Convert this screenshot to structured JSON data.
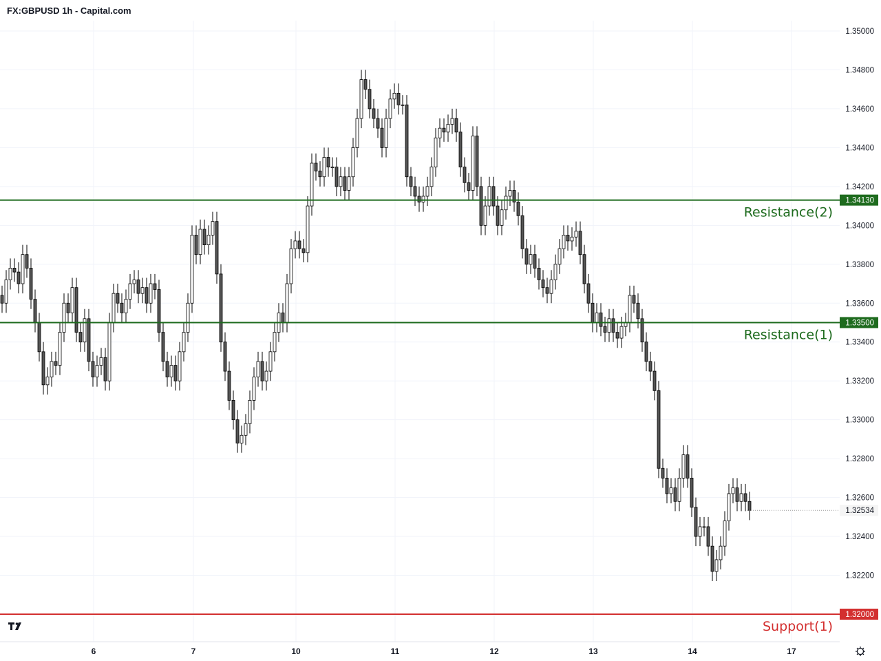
{
  "title": "FX:GBPUSD 1h - Capital.com",
  "chart_data": {
    "type": "candlestick",
    "title": "FX:GBPUSD 1h - Capital.com",
    "ylim": [
      1.3195,
      1.3508
    ],
    "y_ticks": [
      "1.35000",
      "1.34800",
      "1.34600",
      "1.34400",
      "1.34200",
      "1.34000",
      "1.33800",
      "1.33600",
      "1.33400",
      "1.33200",
      "1.33000",
      "1.32800",
      "1.32600",
      "1.32400",
      "1.32200"
    ],
    "x_ticks": [
      "6",
      "7",
      "10",
      "11",
      "12",
      "13",
      "14",
      "17"
    ],
    "grid": true,
    "current_price": "1.32534",
    "closes": [
      1.336,
      1.3372,
      1.3378,
      1.3376,
      1.337,
      1.3385,
      1.3378,
      1.3362,
      1.335,
      1.3335,
      1.3318,
      1.3322,
      1.333,
      1.3328,
      1.3345,
      1.336,
      1.3355,
      1.3368,
      1.3345,
      1.334,
      1.3352,
      1.333,
      1.3322,
      1.3328,
      1.3332,
      1.332,
      1.335,
      1.3365,
      1.336,
      1.3355,
      1.3362,
      1.337,
      1.3372,
      1.3365,
      1.3368,
      1.336,
      1.337,
      1.3367,
      1.3345,
      1.333,
      1.3322,
      1.3328,
      1.332,
      1.3335,
      1.3345,
      1.336,
      1.3395,
      1.3385,
      1.3398,
      1.339,
      1.3395,
      1.3402,
      1.3375,
      1.334,
      1.3325,
      1.331,
      1.33,
      1.3288,
      1.3292,
      1.3298,
      1.331,
      1.3322,
      1.333,
      1.332,
      1.3325,
      1.3335,
      1.3345,
      1.3355,
      1.335,
      1.337,
      1.3388,
      1.3392,
      1.3388,
      1.3386,
      1.341,
      1.3432,
      1.3428,
      1.3425,
      1.3435,
      1.343,
      1.343,
      1.342,
      1.3425,
      1.3418,
      1.3425,
      1.344,
      1.3455,
      1.3475,
      1.347,
      1.346,
      1.3455,
      1.345,
      1.344,
      1.3455,
      1.3465,
      1.3468,
      1.3462,
      1.3462,
      1.3425,
      1.342,
      1.3415,
      1.3412,
      1.3415,
      1.342,
      1.343,
      1.3445,
      1.345,
      1.3448,
      1.3452,
      1.3455,
      1.3448,
      1.343,
      1.3422,
      1.3418,
      1.3446,
      1.342,
      1.34,
      1.341,
      1.342,
      1.341,
      1.34,
      1.3408,
      1.3415,
      1.3418,
      1.3412,
      1.3405,
      1.3388,
      1.338,
      1.3385,
      1.3378,
      1.3372,
      1.3368,
      1.3365,
      1.3372,
      1.338,
      1.3388,
      1.3395,
      1.3392,
      1.3394,
      1.3397,
      1.3385,
      1.337,
      1.336,
      1.335,
      1.3355,
      1.3348,
      1.3345,
      1.3352,
      1.3345,
      1.3342,
      1.3348,
      1.335,
      1.3364,
      1.336,
      1.3352,
      1.334,
      1.333,
      1.3325,
      1.3315,
      1.3275,
      1.327,
      1.3262,
      1.3265,
      1.3258,
      1.327,
      1.3282,
      1.327,
      1.3255,
      1.324,
      1.3245,
      1.3245,
      1.3235,
      1.3222,
      1.3228,
      1.3235,
      1.3248,
      1.3262,
      1.3265,
      1.3258,
      1.3262,
      1.3258,
      1.32534
    ],
    "levels": [
      {
        "name": "Resistance(2)",
        "value": 1.3413,
        "label": "1.34130",
        "color": "#1e6b1e"
      },
      {
        "name": "Resistance(1)",
        "value": 1.335,
        "label": "1.33500",
        "color": "#1e6b1e"
      },
      {
        "name": "Support(1)",
        "value": 1.32,
        "label": "1.32000",
        "color": "#d32f2f"
      }
    ]
  },
  "icons": {
    "logo": "tradingview-logo",
    "settings": "settings-gear-icon"
  }
}
